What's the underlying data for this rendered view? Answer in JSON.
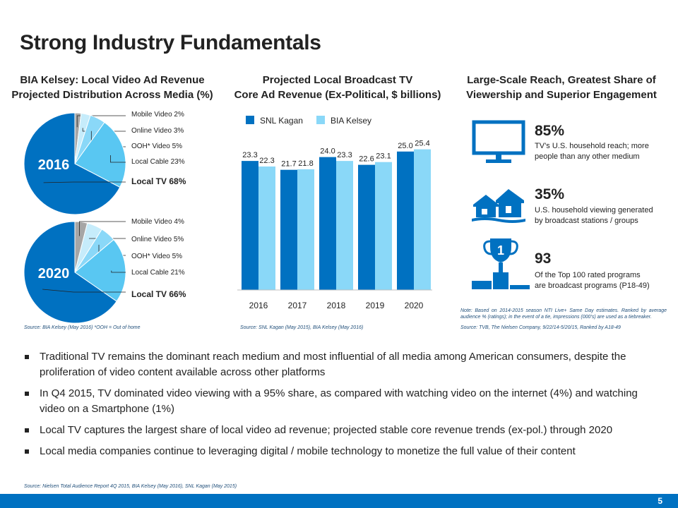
{
  "title": "Strong Industry Fundamentals",
  "left": {
    "title_line1": "BIA Kelsey: Local Video Ad Revenue",
    "title_line2": "Projected Distribution Across Media (%)",
    "pies": [
      {
        "year": "2016",
        "labels": [
          "Mobile Video 2%",
          "Online Video 3%",
          "OOH* Video 5%",
          "Local Cable 23%",
          "Local TV 68%"
        ]
      },
      {
        "year": "2020",
        "labels": [
          "Mobile Video 4%",
          "Online Video 5%",
          "OOH* Video 5%",
          "Local Cable 21%",
          "Local TV 66%"
        ]
      }
    ],
    "source": "Source: BIA Kelsey (May 2016) *OOH = Out of home"
  },
  "middle": {
    "title_line1": "Projected Local Broadcast TV",
    "title_line2": "Core Ad Revenue (Ex-Political, $ billions)",
    "source": "Source: SNL Kagan (May 2015), BIA Kelsey (May 2016)"
  },
  "right": {
    "title_line1": "Large-Scale Reach, Greatest Share of",
    "title_line2": "Viewership and Superior Engagement",
    "stats": [
      {
        "num": "85%",
        "line1": "TV’s U.S. household reach; more",
        "line2": "people than any other medium"
      },
      {
        "num": "35%",
        "line1": "U.S. household viewing generated",
        "line2": "by broadcast stations / groups"
      },
      {
        "num": "93",
        "line1": "Of the Top 100 rated programs",
        "line2": "are broadcast programs (P18-49)"
      }
    ],
    "note": "Note: Based on 2014-2015 season NTI Live+ Same Day estimates. Ranked by average audience % (ratings); in the event of a tie, impressions (000’s) are used as a tiebreaker.",
    "source": "Source: TVB, The Nielsen Company, 9/22/14-5/20/15, Ranked by A18-49",
    "trophy_digit": "1"
  },
  "bullets": [
    "Traditional TV remains the dominant reach medium and most influential of all media among American consumers, despite the proliferation of video content available across other platforms",
    "In Q4 2015, TV dominated video viewing with a 95% share, as compared with watching video on the internet (4%) and watching video on a Smartphone (1%)",
    "Local TV captures the largest share of local video ad revenue; projected stable core revenue trends (ex-pol.) through 2020",
    "Local media companies continue to leveraging digital / mobile technology to monetize the full value of their content"
  ],
  "footer_source": "Source: Nielsen Total Audience Report 4Q 2015, BIA Kelsey (May 2016), SNL Kagan (May 2015)",
  "page_number": "5",
  "colors": {
    "dark_blue": "#0071c1",
    "light_blue": "#8ad8f8",
    "mid_blue": "#59c7f2",
    "pale_blue": "#c6ecfb",
    "gray": "#a6a6a6",
    "text": "#222222"
  },
  "chart_data": [
    {
      "type": "pie",
      "title": "2016",
      "categories": [
        "Mobile Video",
        "Online Video",
        "OOH* Video",
        "Local Cable",
        "Local TV"
      ],
      "values": [
        2,
        3,
        5,
        23,
        68
      ]
    },
    {
      "type": "pie",
      "title": "2020",
      "categories": [
        "Mobile Video",
        "Online Video",
        "OOH* Video",
        "Local Cable",
        "Local TV"
      ],
      "values": [
        4,
        5,
        5,
        21,
        66
      ]
    },
    {
      "type": "bar",
      "categories": [
        "2016",
        "2017",
        "2018",
        "2019",
        "2020"
      ],
      "series": [
        {
          "name": "SNL Kagan",
          "values": [
            23.3,
            21.7,
            24.0,
            22.6,
            25.0
          ],
          "labels": [
            "23.3",
            "21.7",
            "24.0",
            "22.6",
            "25.0"
          ]
        },
        {
          "name": "BIA Kelsey",
          "values": [
            22.3,
            21.8,
            23.3,
            23.1,
            25.4
          ],
          "labels": [
            "22.3",
            "21.8",
            "23.3",
            "23.1",
            "25.4"
          ]
        }
      ],
      "legend": "top",
      "grid": false
    }
  ]
}
